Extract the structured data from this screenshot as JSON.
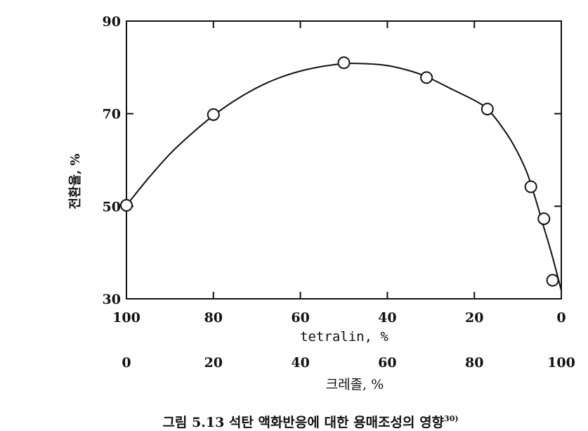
{
  "chart_data": {
    "type": "scatter",
    "caption": "그림 5.13 석탄 액화반응에 대한 용매조성의 영향",
    "caption_ref": "30)",
    "ylabel": "전환율, %",
    "ylim": [
      30,
      90
    ],
    "yticks": [
      30,
      50,
      70,
      90
    ],
    "x_primary": {
      "label": "tetralin,  %",
      "ticks": [
        100,
        80,
        60,
        40,
        20,
        0
      ],
      "range": [
        100,
        0
      ]
    },
    "x_secondary": {
      "label": "크레졸,  %",
      "ticks": [
        0,
        20,
        40,
        60,
        80,
        100
      ],
      "tick_labels": [
        "0",
        "20",
        "40",
        "60",
        "80",
        "100"
      ]
    },
    "x": [
      100,
      80,
      50,
      31,
      17,
      7,
      4,
      2
    ],
    "y": [
      50.2,
      69.8,
      81.0,
      77.8,
      71.0,
      54.2,
      47.3,
      34.0
    ],
    "curve_x": [
      100,
      95,
      90,
      85,
      80,
      75,
      70,
      65,
      60,
      55,
      50,
      45,
      40,
      35,
      31,
      25,
      20,
      17,
      14,
      11,
      8,
      6,
      4,
      2,
      0
    ],
    "curve_y": [
      50.2,
      56.0,
      61.3,
      65.7,
      69.6,
      72.9,
      75.6,
      77.7,
      79.2,
      80.2,
      80.8,
      80.8,
      80.4,
      79.3,
      78.0,
      75.2,
      72.9,
      71.0,
      67.6,
      63.3,
      57.5,
      51.8,
      45.4,
      39.0,
      31.8
    ],
    "grid": false,
    "legend": "none",
    "marker_color": "#111111"
  }
}
